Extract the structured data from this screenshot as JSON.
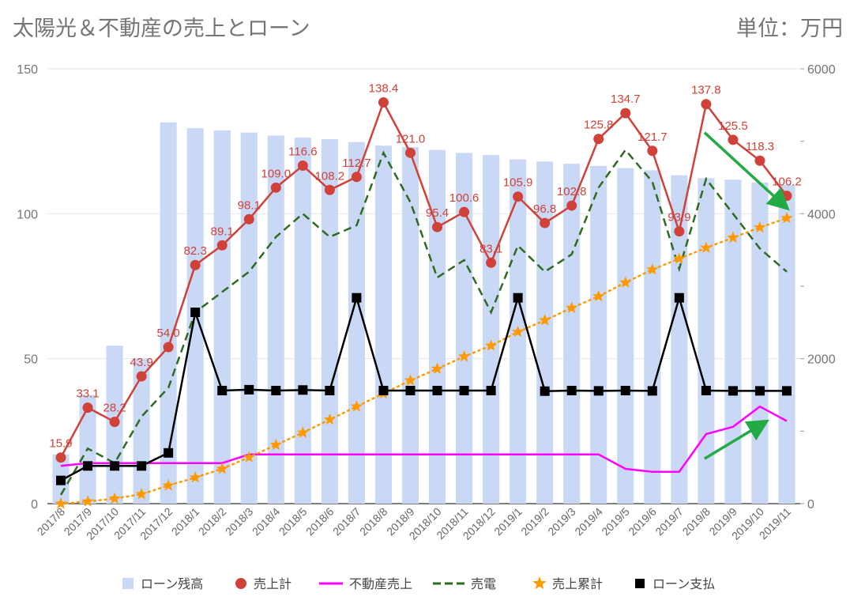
{
  "title": "太陽光＆不動産の売上とローン",
  "unit": "単位：万円",
  "chart_data": {
    "type": "bar+line",
    "categories": [
      "2017/8",
      "2017/9",
      "2017/10",
      "2017/11",
      "2017/12",
      "2018/1",
      "2018/2",
      "2018/3",
      "2018/4",
      "2018/5",
      "2018/6",
      "2018/7",
      "2018/8",
      "2018/9",
      "2018/10",
      "2018/11",
      "2018/12",
      "2019/1",
      "2019/2",
      "2019/3",
      "2019/4",
      "2019/5",
      "2019/6",
      "2019/7",
      "2019/8",
      "2019/9",
      "2019/10",
      "2019/11"
    ],
    "left_axis": {
      "min": 0,
      "max": 150,
      "ticks": [
        0,
        50,
        100,
        150
      ]
    },
    "right_axis": {
      "min": 0,
      "max": 6000,
      "ticks": [
        0,
        2000,
        4000,
        6000
      ]
    },
    "series": [
      {
        "name": "ローン残高",
        "type": "bar",
        "axis": "right",
        "color": "#c9d9f5",
        "values": [
          680,
          1500,
          2180,
          2000,
          5260,
          5180,
          5150,
          5120,
          5080,
          5050,
          5030,
          4990,
          4940,
          4920,
          4880,
          4840,
          4810,
          4750,
          4720,
          4690,
          4660,
          4630,
          4600,
          4530,
          4490,
          4470,
          4430,
          4400
        ]
      },
      {
        "name": "売上計",
        "type": "line-marker",
        "axis": "left",
        "color": "#d0413a",
        "labeled": true,
        "values": [
          15.9,
          33.1,
          28.2,
          43.9,
          54.0,
          82.3,
          89.1,
          98.1,
          109.0,
          116.6,
          108.2,
          112.7,
          138.4,
          121.0,
          95.4,
          100.6,
          83.1,
          105.9,
          96.8,
          102.8,
          125.8,
          134.7,
          121.7,
          93.9,
          137.8,
          125.5,
          118.3,
          106.2
        ]
      },
      {
        "name": "不動産売上",
        "type": "line",
        "axis": "left",
        "color": "#ff00ff",
        "values": [
          13,
          14,
          14,
          14,
          14,
          14,
          14,
          17,
          17,
          17,
          17,
          17,
          17,
          17,
          17,
          17,
          17,
          17,
          17,
          17,
          17,
          12,
          11,
          11,
          24,
          26.5,
          33.5,
          28.5
        ]
      },
      {
        "name": "売電",
        "type": "dashed",
        "axis": "left",
        "color": "#2e6b1f",
        "values": [
          3,
          19,
          14,
          30,
          40,
          66,
          73,
          80,
          92,
          100,
          92,
          96,
          121,
          104,
          78,
          84,
          66,
          89,
          80,
          86,
          109,
          122,
          111,
          81,
          112,
          100,
          88,
          80
        ]
      },
      {
        "name": "売上累計",
        "type": "dotted-star",
        "axis": "right",
        "color": "#ff9900",
        "values": [
          0,
          30,
          70,
          130,
          250,
          360,
          480,
          640,
          810,
          980,
          1160,
          1340,
          1520,
          1700,
          1860,
          2030,
          2180,
          2370,
          2530,
          2700,
          2860,
          3050,
          3230,
          3380,
          3530,
          3670,
          3810,
          3940
        ]
      },
      {
        "name": "ローン支払",
        "type": "line-square",
        "axis": "left",
        "color": "#000000",
        "values": [
          8,
          13,
          13,
          13,
          17.5,
          66,
          39,
          39.3,
          39,
          39.2,
          39,
          71,
          39,
          39,
          39,
          39,
          39,
          71,
          38.8,
          39,
          38.9,
          39,
          38.9,
          71,
          39,
          38.9,
          38.9,
          38.9
        ]
      }
    ],
    "legend": [
      "ローン残高",
      "売上計",
      "不動産売上",
      "売電",
      "売上累計",
      "ローン支払"
    ],
    "legend_position": "bottom",
    "annotations": [
      "green-arrow-down-2019/8-to-2019/11",
      "green-arrow-up-2019/8-to-2019/10"
    ]
  }
}
